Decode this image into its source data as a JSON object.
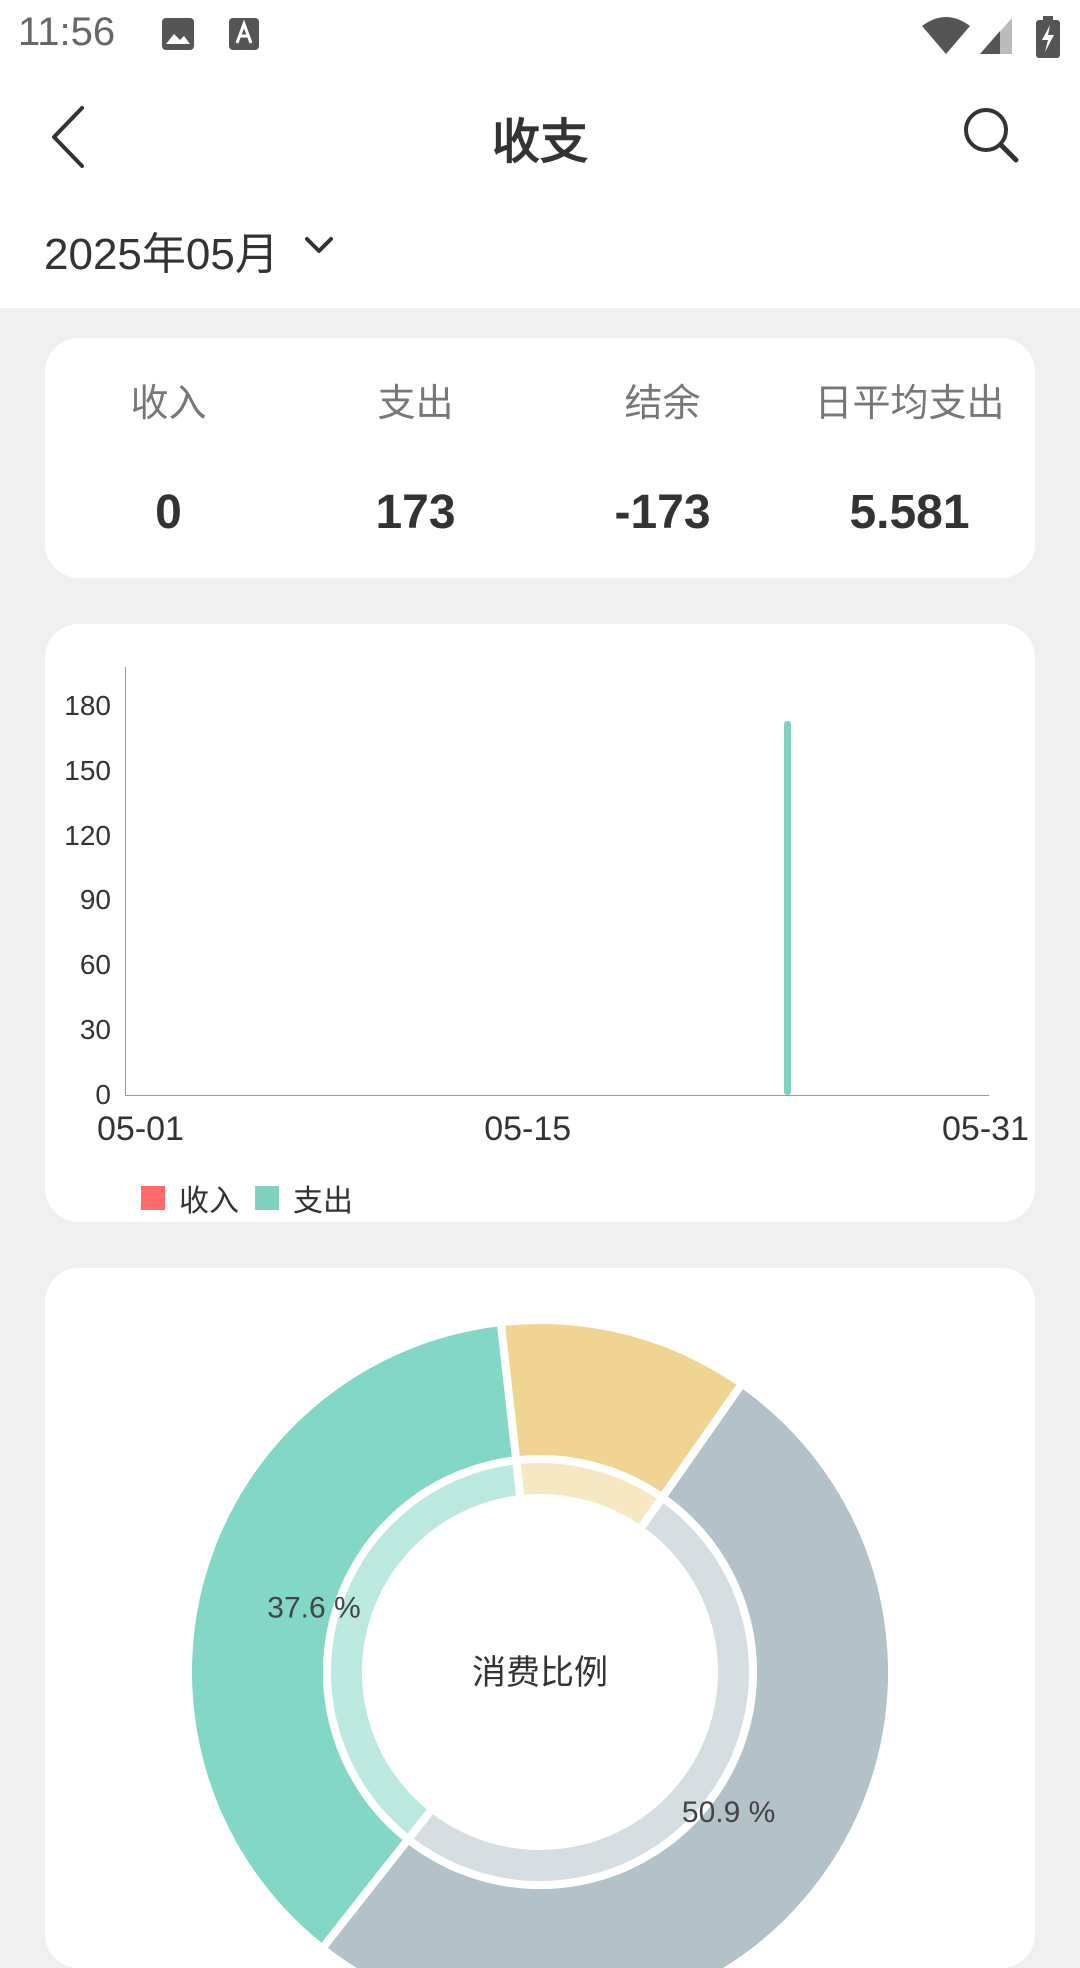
{
  "status": {
    "time": "11:56"
  },
  "header": {
    "title": "收支"
  },
  "month": {
    "selected": "2025年05月"
  },
  "summary": [
    {
      "label": "收入",
      "value": "0"
    },
    {
      "label": "支出",
      "value": "173"
    },
    {
      "label": "结余",
      "value": "-173"
    },
    {
      "label": "日平均支出",
      "value": "5.581"
    }
  ],
  "chart_data": [
    {
      "type": "bar",
      "x_ticks": [
        "05-01",
        "05-15",
        "05-31"
      ],
      "y_ticks": [
        "0",
        "30",
        "60",
        "90",
        "120",
        "150",
        "180"
      ],
      "ylim": [
        0,
        198
      ],
      "x_domain": [
        "05-01",
        "05-31"
      ],
      "series": [
        {
          "name": "收入",
          "color": "#ff6b6b",
          "points": []
        },
        {
          "name": "支出",
          "color": "#80d1bf",
          "points": [
            {
              "x": "05-24",
              "y": 173
            }
          ]
        }
      ],
      "legend": "bottom-left",
      "grid": false
    },
    {
      "type": "pie",
      "title": "消费比例",
      "slices": [
        {
          "value": 50.9,
          "label": "50.9 %",
          "color": "#b3c1c8"
        },
        {
          "value": 37.6,
          "label": "37.6 %",
          "color": "#83d7c6"
        },
        {
          "value": 11.5,
          "label": "",
          "color": "#f0d592"
        }
      ]
    }
  ]
}
